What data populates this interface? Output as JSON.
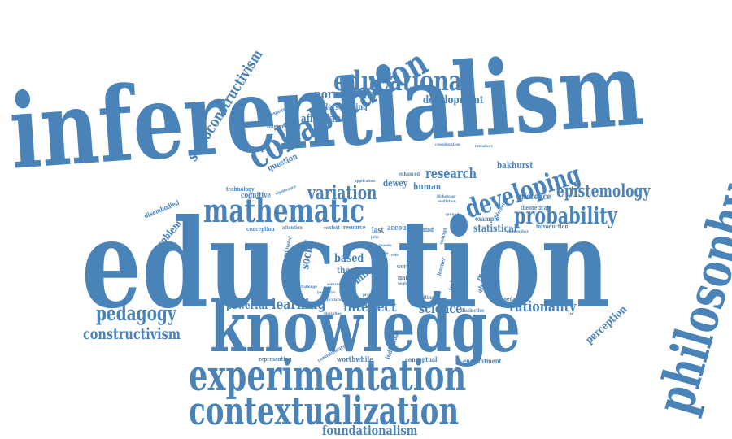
{
  "colors": {
    "word": "#4a83b8",
    "background": "#ffffff"
  },
  "words": {
    "inferentialism": "inferentialism",
    "education": "education",
    "knowledge": "knowledge",
    "experimentation": "experimentation",
    "contextualization": "contextualization",
    "philosophy": "philosophy",
    "collaboration": "collaboration",
    "mathematic": "mathematic",
    "educational": "educational",
    "developing": "developing",
    "probability": "probability",
    "epistemology": "epistemology",
    "variation": "variation",
    "research": "research",
    "pedagogy": "pedagogy",
    "constructivism": "constructivism",
    "socioconstructivism": "socioconstructivism",
    "normativity": "normativity",
    "development": "development",
    "affordance": "affordance",
    "understanding": "understanding",
    "foundationalism": "foundationalism",
    "rationality": "rationality",
    "intellect": "intellect",
    "learning": "learning",
    "powerful": "powerful",
    "science": "science",
    "perception": "perception",
    "based": "based",
    "social": "social",
    "theory": "theory",
    "mile": "mile",
    "statistical": "statistical",
    "inference": "inference",
    "bakhurst": "bakhurst",
    "human": "human",
    "dewey": "dewey",
    "question": "question",
    "problem": "problem",
    "cognitive": "cognitive",
    "technology": "technology",
    "disembodied": "disembodied",
    "intervening": "intervening",
    "responsiveness": "responsiveness",
    "conception": "conception",
    "attention": "attention",
    "context": "context",
    "resource": "resource",
    "last": "last",
    "account": "account",
    "mind": "mind",
    "example": "example",
    "introduction": "introduction",
    "theoretical": "theoretical",
    "inferential": "inferential",
    "philosopher": "philosopher",
    "meaning": "meaning",
    "alternative": "alternative",
    "technologies": "technologies",
    "learner": "learner",
    "concept": "concept",
    "work": "work",
    "matter": "matter",
    "neglect": "neglect",
    "pedagogic": "pedagogic",
    "distinctive": "distinctive",
    "revisiting": "revisiting",
    "enchantment": "enchantment",
    "conceptual": "conceptual",
    "worthwhile": "worthwhile",
    "representing": "representing",
    "contemporary": "contemporary",
    "individual": "individual",
    "practice": "practice",
    "spinoza": "spinoza",
    "discipline": "discipline",
    "articulation": "articulation",
    "challenge": "challenge",
    "cultivated": "cultivated",
    "philosophical": "philosophical",
    "enhanced": "enhanced",
    "application": "application",
    "significance": "significance",
    "john": "john",
    "ground": "ground",
    "consideration": "consideration",
    "introduce": "introduce",
    "dichotomy": "dichotomy",
    "mediation": "mediation",
    "particular": "particular",
    "concrete": "concrete",
    "semantic": "semantic",
    "paper": "paper",
    "role": "role",
    "reason": "reason",
    "view": "view"
  }
}
